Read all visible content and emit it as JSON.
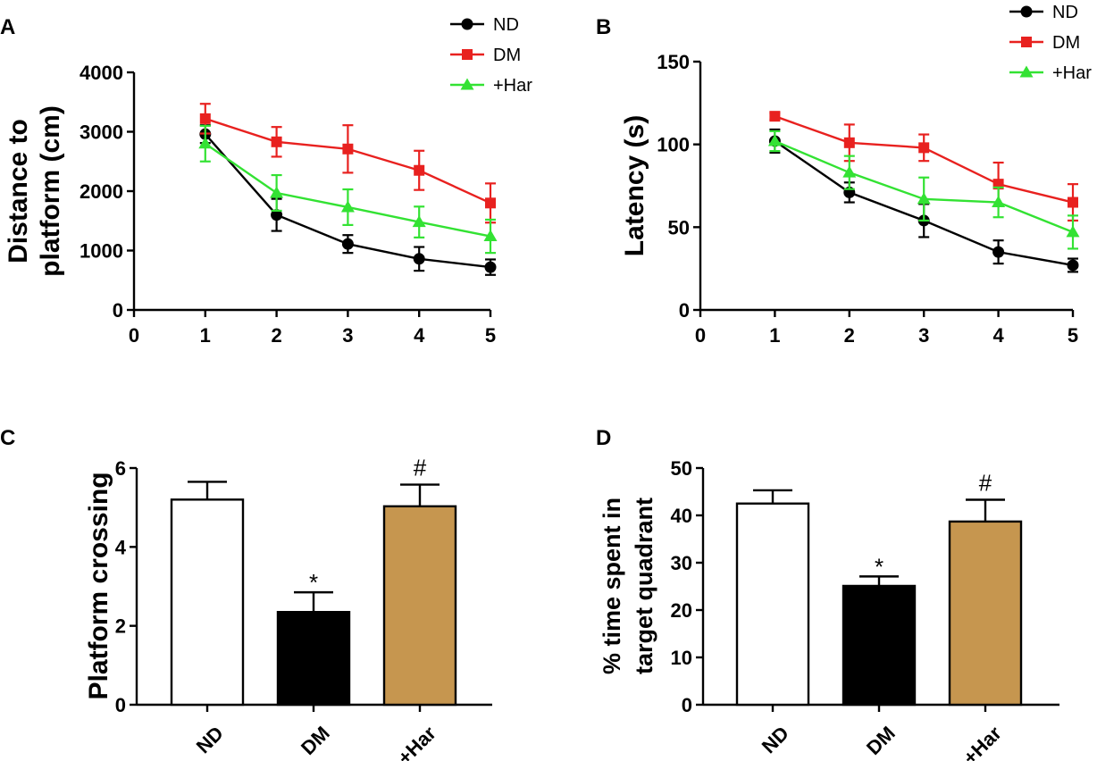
{
  "colors": {
    "ND": "#000000",
    "DM": "#e8211f",
    "Har": "#33e233",
    "bar_ND": "#ffffff",
    "bar_DM": "#000000",
    "bar_Har": "#c6964f"
  },
  "chart_data": [
    {
      "panel": "A",
      "type": "line",
      "ylabel_lines": [
        "Distance to",
        "platform (cm)"
      ],
      "x_ticks": [
        0,
        1,
        2,
        3,
        4,
        5
      ],
      "xlim": [
        0,
        5
      ],
      "y_ticks": [
        0,
        1000,
        2000,
        3000,
        4000
      ],
      "ylim": [
        0,
        4000
      ],
      "legend": [
        "ND",
        "DM",
        "+Har"
      ],
      "series": [
        {
          "name": "ND",
          "color_key": "ND",
          "marker": "circle",
          "x": [
            1,
            2,
            3,
            4,
            5
          ],
          "values": [
            2960,
            1600,
            1110,
            860,
            720
          ],
          "err": [
            150,
            270,
            150,
            200,
            130
          ]
        },
        {
          "name": "DM",
          "color_key": "DM",
          "marker": "square",
          "x": [
            1,
            2,
            3,
            4,
            5
          ],
          "values": [
            3220,
            2830,
            2710,
            2350,
            1800
          ],
          "err": [
            250,
            250,
            400,
            330,
            330
          ]
        },
        {
          "name": "+Har",
          "color_key": "Har",
          "marker": "triangle",
          "x": [
            1,
            2,
            3,
            4,
            5
          ],
          "values": [
            2800,
            1970,
            1730,
            1480,
            1240
          ],
          "err": [
            300,
            300,
            300,
            260,
            280
          ]
        }
      ]
    },
    {
      "panel": "B",
      "type": "line",
      "ylabel_lines": [
        "Latency (s)"
      ],
      "x_ticks": [
        0,
        1,
        2,
        3,
        4,
        5
      ],
      "xlim": [
        0,
        5
      ],
      "y_ticks": [
        0,
        50,
        100,
        150
      ],
      "ylim": [
        0,
        150
      ],
      "legend": [
        "ND",
        "DM",
        "+Har"
      ],
      "series": [
        {
          "name": "ND",
          "color_key": "ND",
          "marker": "circle",
          "x": [
            1,
            2,
            3,
            4,
            5
          ],
          "values": [
            102,
            71,
            54,
            35,
            27
          ],
          "err": [
            7,
            6,
            10,
            7,
            4
          ]
        },
        {
          "name": "DM",
          "color_key": "DM",
          "marker": "square",
          "x": [
            1,
            2,
            3,
            4,
            5
          ],
          "values": [
            117,
            101,
            98,
            76,
            65
          ],
          "err": [
            2,
            11,
            8,
            13,
            11
          ]
        },
        {
          "name": "+Har",
          "color_key": "Har",
          "marker": "triangle",
          "x": [
            1,
            2,
            3,
            4,
            5
          ],
          "values": [
            102,
            83,
            67,
            65,
            47
          ],
          "err": [
            6,
            10,
            13,
            9,
            10
          ]
        }
      ]
    },
    {
      "panel": "C",
      "type": "bar",
      "ylabel_lines": [
        "Platform crossing"
      ],
      "categories": [
        "ND",
        "DM",
        "+Har"
      ],
      "values": [
        5.2,
        2.35,
        5.03
      ],
      "err": [
        0.45,
        0.5,
        0.55
      ],
      "annotations": [
        "",
        "*",
        "#"
      ],
      "fill_keys": [
        "bar_ND",
        "bar_DM",
        "bar_Har"
      ],
      "y_ticks": [
        0,
        2,
        4,
        6
      ],
      "ylim": [
        0,
        6
      ]
    },
    {
      "panel": "D",
      "type": "bar",
      "ylabel_lines": [
        "% time spent in",
        "target quadrant"
      ],
      "categories": [
        "ND",
        "DM",
        "+Har"
      ],
      "values": [
        42.5,
        25.1,
        38.7
      ],
      "err": [
        2.8,
        2.0,
        4.6
      ],
      "annotations": [
        "",
        "*",
        "#"
      ],
      "fill_keys": [
        "bar_ND",
        "bar_DM",
        "bar_Har"
      ],
      "y_ticks": [
        0,
        10,
        20,
        30,
        40,
        50
      ],
      "ylim": [
        0,
        50
      ]
    }
  ]
}
